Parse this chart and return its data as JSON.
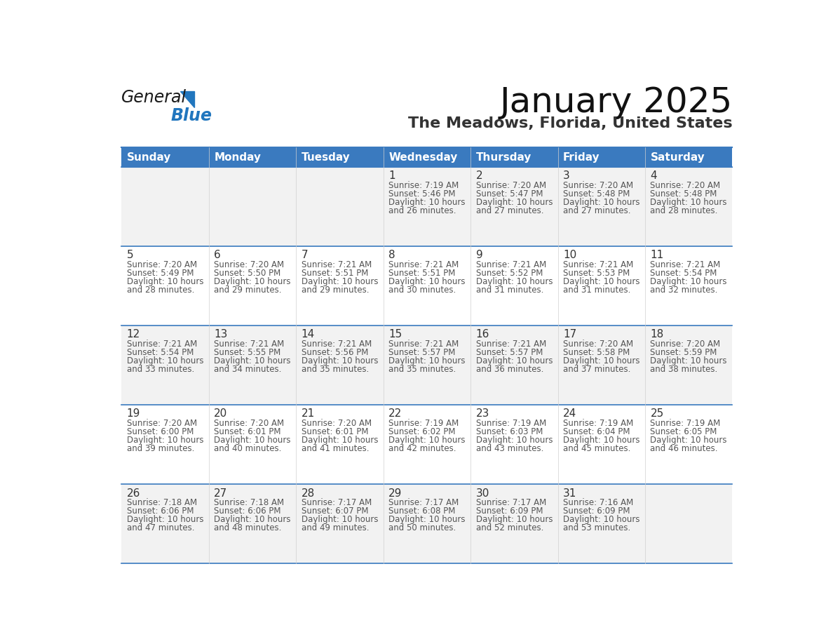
{
  "title": "January 2025",
  "subtitle": "The Meadows, Florida, United States",
  "header_bg_color": "#3a7abf",
  "header_text_color": "#ffffff",
  "row_bg_color_odd": "#f2f2f2",
  "row_bg_color_even": "#ffffff",
  "day_number_color": "#333333",
  "cell_text_color": "#555555",
  "border_color": "#3a7abf",
  "days_of_week": [
    "Sunday",
    "Monday",
    "Tuesday",
    "Wednesday",
    "Thursday",
    "Friday",
    "Saturday"
  ],
  "weeks": [
    [
      {
        "day": "",
        "sunrise": "",
        "sunset": "",
        "daylight": ""
      },
      {
        "day": "",
        "sunrise": "",
        "sunset": "",
        "daylight": ""
      },
      {
        "day": "",
        "sunrise": "",
        "sunset": "",
        "daylight": ""
      },
      {
        "day": "1",
        "sunrise": "7:19 AM",
        "sunset": "5:46 PM",
        "daylight": "10 hours and 26 minutes."
      },
      {
        "day": "2",
        "sunrise": "7:20 AM",
        "sunset": "5:47 PM",
        "daylight": "10 hours and 27 minutes."
      },
      {
        "day": "3",
        "sunrise": "7:20 AM",
        "sunset": "5:48 PM",
        "daylight": "10 hours and 27 minutes."
      },
      {
        "day": "4",
        "sunrise": "7:20 AM",
        "sunset": "5:48 PM",
        "daylight": "10 hours and 28 minutes."
      }
    ],
    [
      {
        "day": "5",
        "sunrise": "7:20 AM",
        "sunset": "5:49 PM",
        "daylight": "10 hours and 28 minutes."
      },
      {
        "day": "6",
        "sunrise": "7:20 AM",
        "sunset": "5:50 PM",
        "daylight": "10 hours and 29 minutes."
      },
      {
        "day": "7",
        "sunrise": "7:21 AM",
        "sunset": "5:51 PM",
        "daylight": "10 hours and 29 minutes."
      },
      {
        "day": "8",
        "sunrise": "7:21 AM",
        "sunset": "5:51 PM",
        "daylight": "10 hours and 30 minutes."
      },
      {
        "day": "9",
        "sunrise": "7:21 AM",
        "sunset": "5:52 PM",
        "daylight": "10 hours and 31 minutes."
      },
      {
        "day": "10",
        "sunrise": "7:21 AM",
        "sunset": "5:53 PM",
        "daylight": "10 hours and 31 minutes."
      },
      {
        "day": "11",
        "sunrise": "7:21 AM",
        "sunset": "5:54 PM",
        "daylight": "10 hours and 32 minutes."
      }
    ],
    [
      {
        "day": "12",
        "sunrise": "7:21 AM",
        "sunset": "5:54 PM",
        "daylight": "10 hours and 33 minutes."
      },
      {
        "day": "13",
        "sunrise": "7:21 AM",
        "sunset": "5:55 PM",
        "daylight": "10 hours and 34 minutes."
      },
      {
        "day": "14",
        "sunrise": "7:21 AM",
        "sunset": "5:56 PM",
        "daylight": "10 hours and 35 minutes."
      },
      {
        "day": "15",
        "sunrise": "7:21 AM",
        "sunset": "5:57 PM",
        "daylight": "10 hours and 35 minutes."
      },
      {
        "day": "16",
        "sunrise": "7:21 AM",
        "sunset": "5:57 PM",
        "daylight": "10 hours and 36 minutes."
      },
      {
        "day": "17",
        "sunrise": "7:20 AM",
        "sunset": "5:58 PM",
        "daylight": "10 hours and 37 minutes."
      },
      {
        "day": "18",
        "sunrise": "7:20 AM",
        "sunset": "5:59 PM",
        "daylight": "10 hours and 38 minutes."
      }
    ],
    [
      {
        "day": "19",
        "sunrise": "7:20 AM",
        "sunset": "6:00 PM",
        "daylight": "10 hours and 39 minutes."
      },
      {
        "day": "20",
        "sunrise": "7:20 AM",
        "sunset": "6:01 PM",
        "daylight": "10 hours and 40 minutes."
      },
      {
        "day": "21",
        "sunrise": "7:20 AM",
        "sunset": "6:01 PM",
        "daylight": "10 hours and 41 minutes."
      },
      {
        "day": "22",
        "sunrise": "7:19 AM",
        "sunset": "6:02 PM",
        "daylight": "10 hours and 42 minutes."
      },
      {
        "day": "23",
        "sunrise": "7:19 AM",
        "sunset": "6:03 PM",
        "daylight": "10 hours and 43 minutes."
      },
      {
        "day": "24",
        "sunrise": "7:19 AM",
        "sunset": "6:04 PM",
        "daylight": "10 hours and 45 minutes."
      },
      {
        "day": "25",
        "sunrise": "7:19 AM",
        "sunset": "6:05 PM",
        "daylight": "10 hours and 46 minutes."
      }
    ],
    [
      {
        "day": "26",
        "sunrise": "7:18 AM",
        "sunset": "6:06 PM",
        "daylight": "10 hours and 47 minutes."
      },
      {
        "day": "27",
        "sunrise": "7:18 AM",
        "sunset": "6:06 PM",
        "daylight": "10 hours and 48 minutes."
      },
      {
        "day": "28",
        "sunrise": "7:17 AM",
        "sunset": "6:07 PM",
        "daylight": "10 hours and 49 minutes."
      },
      {
        "day": "29",
        "sunrise": "7:17 AM",
        "sunset": "6:08 PM",
        "daylight": "10 hours and 50 minutes."
      },
      {
        "day": "30",
        "sunrise": "7:17 AM",
        "sunset": "6:09 PM",
        "daylight": "10 hours and 52 minutes."
      },
      {
        "day": "31",
        "sunrise": "7:16 AM",
        "sunset": "6:09 PM",
        "daylight": "10 hours and 53 minutes."
      },
      {
        "day": "",
        "sunrise": "",
        "sunset": "",
        "daylight": ""
      }
    ]
  ],
  "logo_color_general": "#1a1a1a",
  "logo_color_blue": "#2176be",
  "logo_triangle_color": "#2176be",
  "title_fontsize": 36,
  "subtitle_fontsize": 16,
  "header_fontsize": 11,
  "day_number_fontsize": 11,
  "cell_fontsize": 8.5
}
